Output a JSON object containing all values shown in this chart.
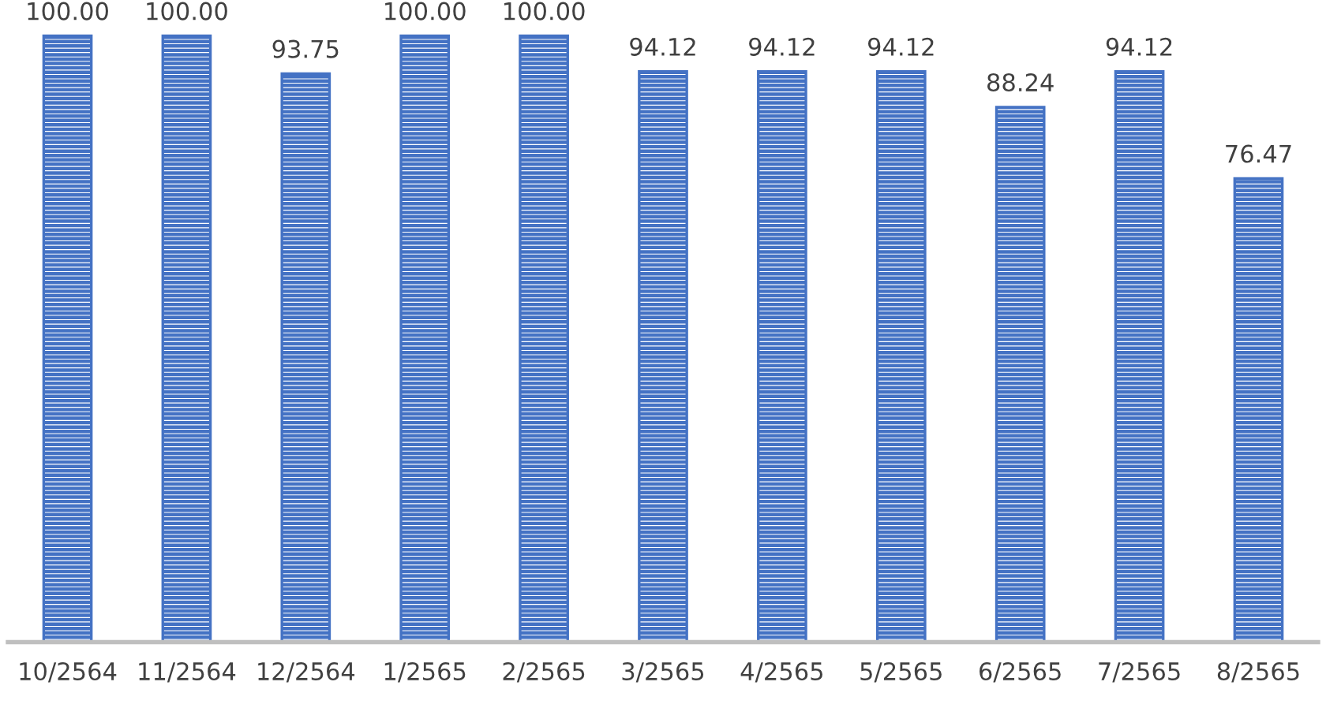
{
  "chart_data": {
    "type": "bar",
    "categories": [
      "10/2564",
      "11/2564",
      "12/2564",
      "1/2565",
      "2/2565",
      "3/2565",
      "4/2565",
      "5/2565",
      "6/2565",
      "7/2565",
      "8/2565"
    ],
    "values": [
      100.0,
      100.0,
      93.75,
      100.0,
      100.0,
      94.12,
      94.12,
      94.12,
      88.24,
      94.12,
      76.47
    ],
    "value_labels": [
      "100.00",
      "100.00",
      "93.75",
      "100.00",
      "100.00",
      "94.12",
      "94.12",
      "94.12",
      "88.24",
      "94.12",
      "76.47"
    ],
    "color": "#4472c4",
    "tick_labels": "x",
    "grid": false,
    "legend": false
  }
}
